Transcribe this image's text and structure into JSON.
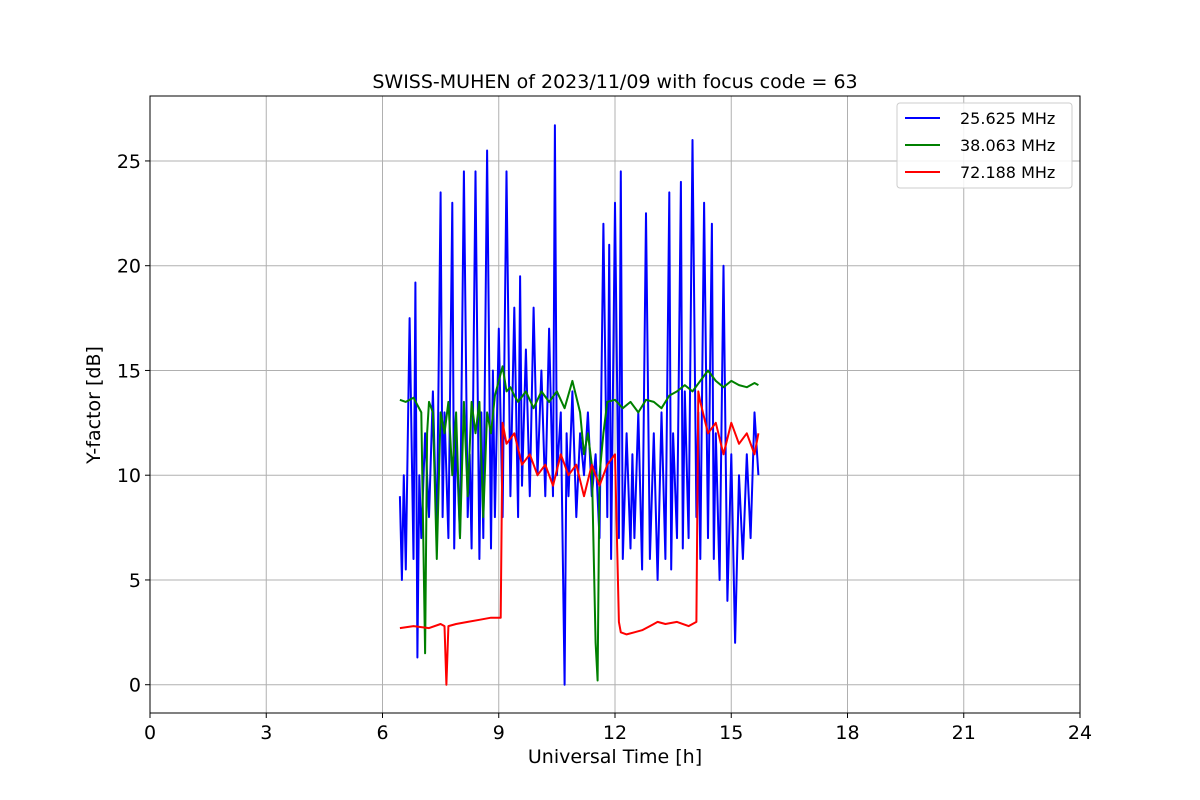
{
  "chart_data": {
    "type": "line",
    "title": "SWISS-MUHEN of 2023/11/09 with focus code = 63",
    "xlabel": "Universal Time [h]",
    "ylabel": "Y-factor [dB]",
    "xlim": [
      0,
      24
    ],
    "ylim": [
      -1.35,
      28.1
    ],
    "xticks": [
      0,
      3,
      6,
      9,
      12,
      15,
      18,
      21,
      24
    ],
    "yticks": [
      0,
      5,
      10,
      15,
      20,
      25
    ],
    "grid": true,
    "legend_position": "top-right",
    "series": [
      {
        "name": "25.625 MHz",
        "color": "#0000ff",
        "x": [
          6.45,
          6.5,
          6.55,
          6.6,
          6.7,
          6.8,
          6.85,
          6.9,
          6.95,
          7.0,
          7.1,
          7.2,
          7.3,
          7.4,
          7.5,
          7.55,
          7.6,
          7.7,
          7.8,
          7.85,
          7.9,
          8.0,
          8.1,
          8.2,
          8.25,
          8.3,
          8.4,
          8.5,
          8.55,
          8.6,
          8.7,
          8.8,
          8.85,
          8.9,
          9.0,
          9.1,
          9.2,
          9.3,
          9.4,
          9.5,
          9.55,
          9.6,
          9.7,
          9.8,
          9.9,
          10.0,
          10.1,
          10.2,
          10.3,
          10.4,
          10.45,
          10.5,
          10.6,
          10.7,
          10.75,
          10.8,
          10.9,
          11.0,
          11.1,
          11.2,
          11.3,
          11.4,
          11.5,
          11.6,
          11.7,
          11.8,
          11.85,
          11.9,
          12.0,
          12.1,
          12.15,
          12.2,
          12.3,
          12.4,
          12.45,
          12.5,
          12.6,
          12.7,
          12.8,
          12.9,
          13.0,
          13.1,
          13.2,
          13.3,
          13.4,
          13.45,
          13.5,
          13.6,
          13.7,
          13.75,
          13.8,
          13.9,
          14.0,
          14.1,
          14.15,
          14.2,
          14.3,
          14.4,
          14.5,
          14.55,
          14.6,
          14.7,
          14.8,
          14.9,
          15.0,
          15.1,
          15.2,
          15.3,
          15.4,
          15.5,
          15.6,
          15.7
        ],
        "y": [
          9.0,
          5.0,
          10.0,
          5.5,
          17.5,
          6.0,
          19.2,
          1.3,
          10.0,
          7.0,
          12.0,
          8.0,
          14.0,
          7.0,
          23.5,
          8.0,
          13.0,
          7.0,
          23.0,
          6.5,
          12.0,
          7.0,
          24.5,
          8.0,
          11.0,
          6.5,
          24.5,
          6.0,
          13.0,
          7.0,
          25.5,
          6.5,
          15.0,
          8.0,
          17.0,
          8.0,
          24.5,
          9.0,
          18.0,
          8.0,
          19.5,
          9.5,
          16.0,
          9.0,
          18.0,
          10.0,
          15.0,
          9.0,
          17.0,
          9.0,
          26.7,
          10.0,
          13.0,
          0.0,
          12.0,
          9.0,
          14.0,
          8.0,
          12.0,
          10.0,
          13.0,
          9.0,
          11.0,
          7.0,
          22.0,
          8.0,
          21.0,
          6.0,
          23.0,
          7.0,
          24.5,
          6.0,
          12.0,
          6.5,
          11.0,
          7.0,
          13.0,
          5.5,
          22.5,
          6.0,
          12.0,
          5.0,
          13.0,
          6.0,
          23.5,
          5.5,
          12.0,
          7.0,
          24.0,
          6.5,
          14.0,
          7.0,
          26.0,
          8.0,
          13.0,
          6.0,
          23.0,
          7.0,
          22.0,
          6.0,
          12.0,
          5.0,
          20.0,
          4.0,
          11.0,
          2.0,
          10.0,
          6.0,
          11.0,
          7.0,
          13.0,
          10.0
        ]
      },
      {
        "name": "38.063 MHz",
        "color": "#008000",
        "x": [
          6.45,
          6.6,
          6.8,
          7.0,
          7.1,
          7.15,
          7.2,
          7.3,
          7.4,
          7.5,
          7.6,
          7.7,
          7.8,
          7.9,
          8.0,
          8.1,
          8.2,
          8.3,
          8.4,
          8.5,
          8.6,
          8.7,
          8.8,
          8.9,
          9.0,
          9.1,
          9.2,
          9.3,
          9.4,
          9.5,
          9.7,
          9.9,
          10.1,
          10.3,
          10.5,
          10.7,
          10.9,
          11.1,
          11.2,
          11.3,
          11.4,
          11.5,
          11.55,
          11.6,
          11.7,
          11.8,
          12.0,
          12.2,
          12.4,
          12.6,
          12.8,
          13.0,
          13.2,
          13.4,
          13.6,
          13.8,
          14.0,
          14.2,
          14.4,
          14.6,
          14.8,
          15.0,
          15.2,
          15.4,
          15.6,
          15.7
        ],
        "y": [
          13.6,
          13.5,
          13.7,
          13.0,
          1.5,
          12.0,
          13.5,
          13.0,
          6.0,
          13.0,
          12.0,
          13.5,
          10.0,
          13.0,
          7.0,
          13.5,
          9.0,
          13.5,
          12.0,
          13.5,
          8.0,
          13.0,
          12.0,
          13.8,
          14.5,
          15.2,
          14.0,
          14.2,
          13.8,
          13.5,
          14.0,
          13.2,
          14.0,
          13.5,
          14.0,
          13.2,
          14.5,
          13.0,
          11.0,
          12.0,
          10.5,
          2.0,
          0.2,
          10.0,
          12.0,
          13.5,
          13.6,
          13.2,
          13.5,
          13.0,
          13.6,
          13.5,
          13.2,
          13.8,
          14.0,
          14.3,
          14.0,
          14.5,
          15.0,
          14.5,
          14.2,
          14.5,
          14.3,
          14.2,
          14.4,
          14.3
        ]
      },
      {
        "name": "72.188 MHz",
        "color": "#ff0000",
        "x": [
          6.45,
          6.8,
          7.2,
          7.5,
          7.6,
          7.65,
          7.7,
          7.9,
          8.2,
          8.5,
          8.8,
          9.05,
          9.1,
          9.2,
          9.4,
          9.6,
          9.8,
          10.0,
          10.2,
          10.4,
          10.6,
          10.8,
          11.0,
          11.2,
          11.4,
          11.6,
          11.8,
          12.0,
          12.1,
          12.15,
          12.3,
          12.5,
          12.7,
          12.9,
          13.0,
          13.1,
          13.3,
          13.6,
          13.9,
          14.1,
          14.15,
          14.2,
          14.4,
          14.6,
          14.8,
          15.0,
          15.2,
          15.4,
          15.6,
          15.7
        ],
        "y": [
          2.7,
          2.8,
          2.7,
          2.9,
          2.8,
          0.0,
          2.8,
          2.9,
          3.0,
          3.1,
          3.2,
          3.2,
          12.5,
          11.5,
          12.0,
          10.5,
          11.0,
          10.0,
          10.5,
          9.5,
          11.0,
          10.0,
          10.5,
          9.0,
          10.5,
          9.5,
          10.5,
          11.0,
          3.0,
          2.5,
          2.4,
          2.5,
          2.6,
          2.8,
          2.9,
          3.0,
          2.9,
          3.0,
          2.8,
          3.0,
          14.0,
          13.5,
          12.0,
          12.5,
          11.0,
          12.5,
          11.5,
          12.0,
          11.0,
          12.0
        ]
      }
    ]
  }
}
